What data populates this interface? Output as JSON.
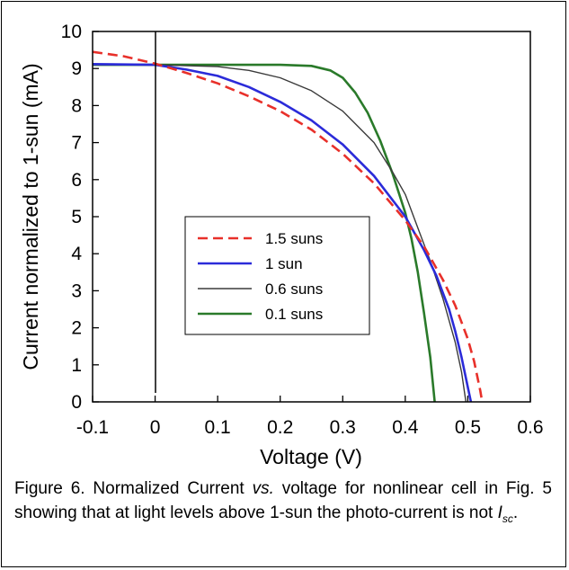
{
  "chart_data": {
    "type": "line",
    "xlabel": "Voltage (V)",
    "ylabel": "Current normalized to 1-sun (mA)",
    "xlim": [
      -0.1,
      0.6
    ],
    "ylim": [
      0,
      10
    ],
    "xticks": [
      "-0.1",
      "0",
      "0.1",
      "0.2",
      "0.3",
      "0.4",
      "0.5",
      "0.6"
    ],
    "yticks": [
      "0",
      "1",
      "2",
      "3",
      "4",
      "5",
      "6",
      "7",
      "8",
      "9",
      "10"
    ],
    "grid": false,
    "legend_position": "center",
    "series": [
      {
        "name": "1.5 suns",
        "color": "#e8302a",
        "style": "dashed",
        "points": [
          [
            -0.1,
            9.45
          ],
          [
            -0.05,
            9.33
          ],
          [
            0,
            9.13
          ],
          [
            0.05,
            8.88
          ],
          [
            0.1,
            8.6
          ],
          [
            0.15,
            8.25
          ],
          [
            0.2,
            7.85
          ],
          [
            0.25,
            7.35
          ],
          [
            0.3,
            6.7
          ],
          [
            0.35,
            5.9
          ],
          [
            0.4,
            4.9
          ],
          [
            0.43,
            4.2
          ],
          [
            0.46,
            3.3
          ],
          [
            0.48,
            2.6
          ],
          [
            0.5,
            1.7
          ],
          [
            0.51,
            1.1
          ],
          [
            0.52,
            0.3
          ],
          [
            0.523,
            0
          ]
        ]
      },
      {
        "name": "1 sun",
        "color": "#2b2bd9",
        "style": "solid",
        "points": [
          [
            -0.1,
            9.12
          ],
          [
            0,
            9.1
          ],
          [
            0.05,
            8.97
          ],
          [
            0.1,
            8.8
          ],
          [
            0.15,
            8.5
          ],
          [
            0.2,
            8.1
          ],
          [
            0.25,
            7.6
          ],
          [
            0.3,
            6.95
          ],
          [
            0.35,
            6.1
          ],
          [
            0.4,
            5.0
          ],
          [
            0.43,
            4.1
          ],
          [
            0.45,
            3.4
          ],
          [
            0.47,
            2.5
          ],
          [
            0.48,
            1.9
          ],
          [
            0.49,
            1.2
          ],
          [
            0.5,
            0.4
          ],
          [
            0.505,
            0
          ]
        ]
      },
      {
        "name": "0.6 suns",
        "color": "#3a3a3a",
        "style": "solid",
        "points": [
          [
            -0.1,
            9.1
          ],
          [
            0,
            9.1
          ],
          [
            0.1,
            9.05
          ],
          [
            0.15,
            8.95
          ],
          [
            0.2,
            8.75
          ],
          [
            0.25,
            8.4
          ],
          [
            0.3,
            7.85
          ],
          [
            0.35,
            7.0
          ],
          [
            0.38,
            6.2
          ],
          [
            0.4,
            5.6
          ],
          [
            0.42,
            4.7
          ],
          [
            0.44,
            3.8
          ],
          [
            0.46,
            2.8
          ],
          [
            0.48,
            1.6
          ],
          [
            0.49,
            0.8
          ],
          [
            0.497,
            0
          ]
        ]
      },
      {
        "name": "0.1 suns",
        "color": "#2a7a2a",
        "style": "solid",
        "points": [
          [
            -0.1,
            9.1
          ],
          [
            0.2,
            9.1
          ],
          [
            0.25,
            9.07
          ],
          [
            0.28,
            8.95
          ],
          [
            0.3,
            8.75
          ],
          [
            0.32,
            8.35
          ],
          [
            0.34,
            7.8
          ],
          [
            0.36,
            7.05
          ],
          [
            0.38,
            6.15
          ],
          [
            0.4,
            5.1
          ],
          [
            0.41,
            4.4
          ],
          [
            0.42,
            3.5
          ],
          [
            0.43,
            2.4
          ],
          [
            0.44,
            1.2
          ],
          [
            0.447,
            0
          ]
        ]
      }
    ]
  },
  "caption": {
    "prefix": "Figure 6.  Normalized Current ",
    "vs": "vs.",
    "middle": " voltage for nonlinear cell in Fig. 5 showing that at light levels above 1-sun the photo-current is not ",
    "isc_main": "I",
    "isc_sub": "sc",
    "end": "."
  }
}
